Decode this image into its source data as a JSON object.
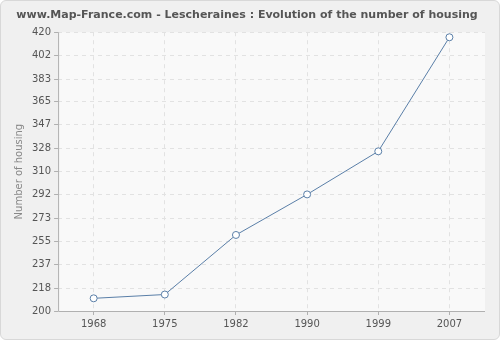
{
  "chart_data": {
    "type": "line",
    "title": "www.Map-France.com - Lescheraines : Evolution of the number of housing",
    "y_label": "Number of housing",
    "categories": [
      "1968",
      "1975",
      "1982",
      "1990",
      "1999",
      "2007"
    ],
    "values": [
      210,
      213,
      260,
      292,
      326,
      416
    ],
    "color": "#5a7fa8",
    "marker": "circle",
    "ylim": [
      200,
      420
    ],
    "yticks": [
      200,
      218,
      237,
      255,
      273,
      292,
      310,
      328,
      347,
      365,
      383,
      402,
      420
    ],
    "grid": true
  }
}
